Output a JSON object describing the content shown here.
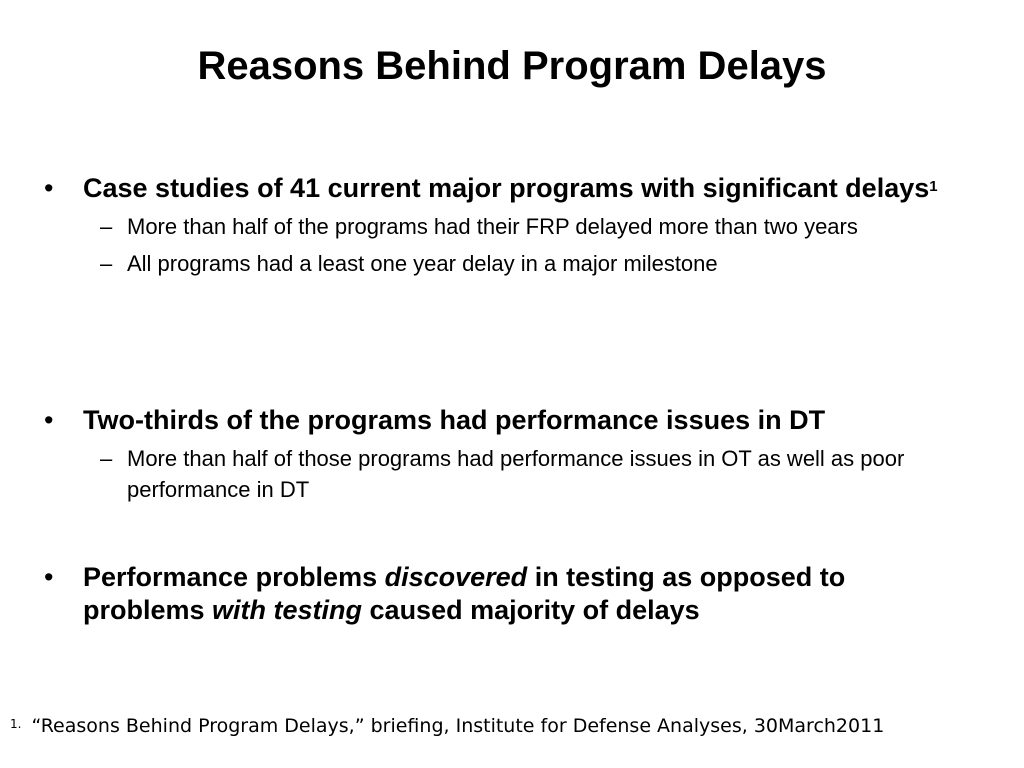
{
  "title": "Reasons Behind Program Delays",
  "bullets": [
    {
      "text": "Case studies of 41 current major programs with significant delays",
      "sup": "1",
      "subitems": [
        "More than half of the programs had their FRP delayed more than two years",
        "All programs had a least one year delay in a major milestone"
      ]
    },
    {
      "text": "Two-thirds of the programs had performance issues in DT",
      "subitems": [
        "More than half of those programs had performance issues in OT as well as poor performance in DT"
      ]
    },
    {
      "parts": [
        "Performance problems ",
        "discovered",
        " in testing as opposed to problems ",
        "with testing",
        " caused majority of delays"
      ]
    }
  ],
  "bullet_symbol": "•",
  "dash_symbol": "–",
  "footnote": {
    "number": "1.",
    "text": "“Reasons Behind Program Delays,”  briefing, Institute for Defense Analyses, 30March2011"
  }
}
